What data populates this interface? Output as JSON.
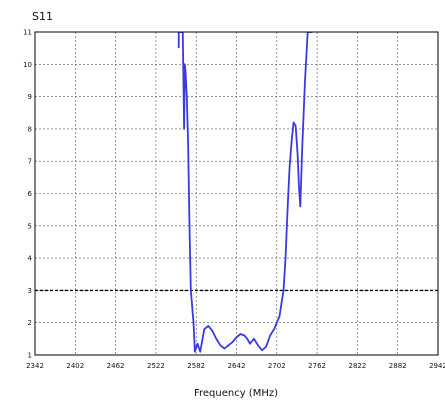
{
  "chart_data": {
    "type": "line",
    "title": "S11",
    "xlabel": "Frequency (MHz)",
    "ylabel": "",
    "xlim": [
      2342,
      2942
    ],
    "ylim": [
      1,
      11
    ],
    "x_ticks": [
      "2342",
      "2402",
      "2462",
      "2522",
      "2582",
      "2642",
      "2702",
      "2762",
      "2822",
      "2882",
      "2942"
    ],
    "y_ticks": [
      "1",
      "2",
      "3",
      "4",
      "5",
      "6",
      "7",
      "8",
      "9",
      "10",
      "11"
    ],
    "grid": true,
    "reference_line": {
      "y": 3
    },
    "series": [
      {
        "color": "#3a3adf",
        "x": [
          2556,
          2556,
          2557,
          2559,
          2559,
          2560,
          2562,
          2564,
          2565,
          2566,
          2568,
          2570,
          2572,
          2574,
          2578,
          2580,
          2584,
          2588,
          2594,
          2600,
          2606,
          2612,
          2618,
          2624,
          2630,
          2636,
          2642,
          2648,
          2654,
          2658,
          2662,
          2668,
          2674,
          2680,
          2686,
          2692,
          2698,
          2702,
          2706,
          2709,
          2712,
          2715,
          2718,
          2721,
          2724,
          2727,
          2730,
          2733,
          2735,
          2737,
          2740,
          2744,
          2748,
          2752,
          2755
        ],
        "y": [
          10.5,
          11,
          11,
          11,
          11,
          11,
          11,
          8.0,
          10.0,
          9.8,
          9.0,
          7.5,
          5.0,
          3.0,
          2.0,
          1.1,
          1.35,
          1.1,
          1.8,
          1.9,
          1.75,
          1.5,
          1.3,
          1.2,
          1.3,
          1.4,
          1.55,
          1.65,
          1.6,
          1.5,
          1.35,
          1.5,
          1.3,
          1.15,
          1.25,
          1.6,
          1.8,
          2.0,
          2.2,
          2.6,
          3.0,
          4.0,
          5.5,
          6.8,
          7.6,
          8.2,
          8.1,
          7.2,
          6.2,
          5.6,
          7.5,
          9.5,
          11,
          11,
          11
        ]
      }
    ]
  }
}
